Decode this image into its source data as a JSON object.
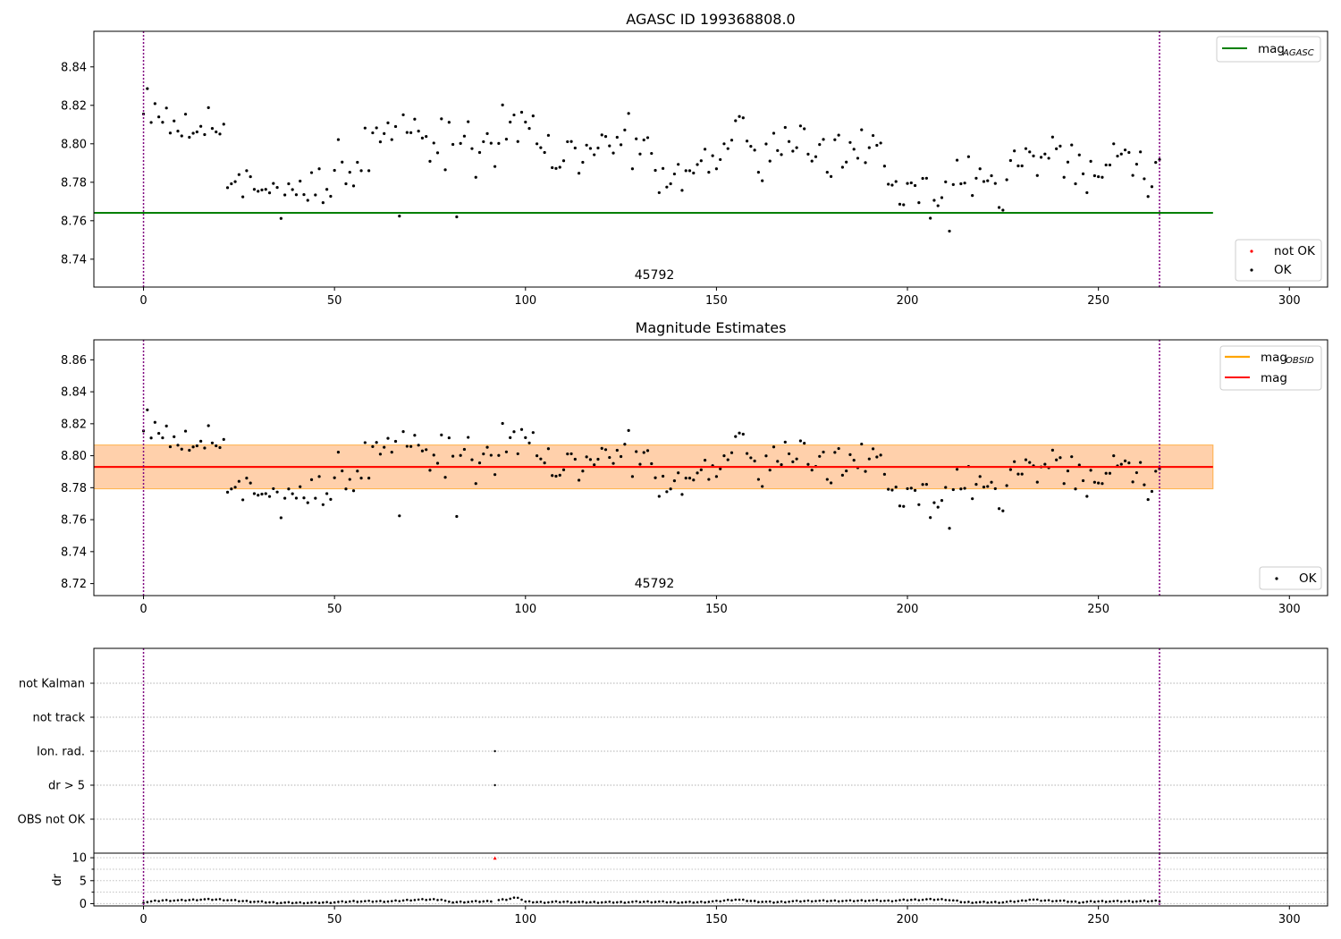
{
  "chart_data": [
    {
      "type": "scatter",
      "title": "AGASC ID 199368808.0",
      "xlim": [
        -13,
        310
      ],
      "ylim": [
        8.7255,
        8.8585
      ],
      "xticks": [
        0,
        50,
        100,
        150,
        200,
        250,
        300
      ],
      "yticks": [
        8.74,
        8.76,
        8.78,
        8.8,
        8.82,
        8.84
      ],
      "vlines": [
        0,
        266
      ],
      "annotation": {
        "text": "45792",
        "x": 133,
        "y": 8.7295
      },
      "hlines": [
        {
          "name": "mag",
          "subscript": "AGASC",
          "y": 8.7641,
          "xmin": -13,
          "xmax": 280,
          "color": "#008000"
        }
      ],
      "legend_lines": [
        {
          "name": "mag",
          "subscript": "AGASC",
          "color": "#008000"
        }
      ],
      "legend_markers": [
        {
          "name": "not OK",
          "color": "#ff0000"
        },
        {
          "name": "OK",
          "color": "#000000"
        }
      ],
      "legend_position": "top-right / bottom-right"
    },
    {
      "type": "scatter",
      "title": "Magnitude Estimates",
      "xlim": [
        -13,
        310
      ],
      "ylim": [
        8.7125,
        8.8725
      ],
      "xticks": [
        0,
        50,
        100,
        150,
        200,
        250,
        300
      ],
      "yticks": [
        8.72,
        8.74,
        8.76,
        8.78,
        8.8,
        8.82,
        8.84,
        8.86
      ],
      "vlines": [
        0,
        266
      ],
      "annotation": {
        "text": "45792",
        "x": 133,
        "y": 8.7165
      },
      "bands": [
        {
          "ymin": 8.7793,
          "ymax": 8.8067,
          "xmin": -13,
          "xmax": 280,
          "color": "#ffc0cb",
          "opacity": 0.5
        },
        {
          "ymin": 8.7793,
          "ymax": 8.8067,
          "xmin": -13,
          "xmax": 280,
          "color": "#ffa500",
          "opacity": 0.25
        }
      ],
      "hlines": [
        {
          "name": "mag",
          "subscript": "OBSID",
          "y": 8.793,
          "xmin": -13,
          "xmax": 280,
          "color": "#ffa500"
        },
        {
          "name": "mag",
          "subscript": "",
          "y": 8.793,
          "xmin": -13,
          "xmax": 280,
          "color": "#ff0000"
        }
      ],
      "legend_lines": [
        {
          "name": "mag",
          "subscript": "OBSID",
          "color": "#ffa500"
        },
        {
          "name": "mag",
          "subscript": "",
          "color": "#ff0000"
        }
      ],
      "legend_markers": [
        {
          "name": "OK",
          "color": "#000000"
        }
      ],
      "legend_position": "top-right / bottom-right"
    },
    {
      "type": "scatter",
      "title": "",
      "xlim": [
        -13,
        310
      ],
      "categories": [
        "not Kalman",
        "not track",
        "Ion. rad.",
        "dr > 5",
        "OBS not OK"
      ],
      "vlines": [
        0,
        266
      ],
      "flag_points": [
        {
          "category": "Ion. rad.",
          "x": 92
        },
        {
          "category": "dr > 5",
          "x": 92
        }
      ],
      "grid": "dotted horizontal"
    },
    {
      "type": "scatter",
      "title": "",
      "ylabel": "dr",
      "xlim": [
        -13,
        310
      ],
      "ylim": [
        -0.5,
        11
      ],
      "xticks": [
        0,
        50,
        100,
        150,
        200,
        250,
        300
      ],
      "yticks": [
        0,
        5,
        10
      ],
      "vlines": [
        0,
        266
      ],
      "outlier": {
        "x": 92,
        "y": 9.9,
        "color": "#ff0000"
      },
      "dr_profile": [
        [
          0,
          0.3
        ],
        [
          5,
          0.7
        ],
        [
          10,
          0.7
        ],
        [
          15,
          0.9
        ],
        [
          20,
          0.9
        ],
        [
          25,
          0.6
        ],
        [
          30,
          0.4
        ],
        [
          35,
          0.2
        ],
        [
          40,
          0.2
        ],
        [
          45,
          0.2
        ],
        [
          50,
          0.3
        ],
        [
          55,
          0.5
        ],
        [
          60,
          0.5
        ],
        [
          65,
          0.5
        ],
        [
          70,
          0.8
        ],
        [
          75,
          0.9
        ],
        [
          78,
          0.9
        ],
        [
          80,
          0.3
        ],
        [
          85,
          0.4
        ],
        [
          90,
          0.5
        ],
        [
          95,
          0.9
        ],
        [
          98,
          1.4
        ],
        [
          100,
          0.4
        ],
        [
          105,
          0.3
        ],
        [
          110,
          0.4
        ],
        [
          115,
          0.3
        ],
        [
          120,
          0.3
        ],
        [
          125,
          0.3
        ],
        [
          130,
          0.4
        ],
        [
          135,
          0.4
        ],
        [
          140,
          0.3
        ],
        [
          145,
          0.3
        ],
        [
          150,
          0.5
        ],
        [
          155,
          0.9
        ],
        [
          160,
          0.5
        ],
        [
          165,
          0.3
        ],
        [
          170,
          0.5
        ],
        [
          175,
          0.6
        ],
        [
          180,
          0.6
        ],
        [
          185,
          0.6
        ],
        [
          190,
          0.7
        ],
        [
          195,
          0.6
        ],
        [
          200,
          0.8
        ],
        [
          205,
          0.9
        ],
        [
          210,
          0.9
        ],
        [
          215,
          0.3
        ],
        [
          220,
          0.3
        ],
        [
          225,
          0.3
        ],
        [
          230,
          0.6
        ],
        [
          232,
          0.9
        ],
        [
          235,
          0.7
        ],
        [
          240,
          0.6
        ],
        [
          245,
          0.3
        ],
        [
          250,
          0.5
        ],
        [
          255,
          0.5
        ],
        [
          260,
          0.5
        ],
        [
          266,
          0.6
        ]
      ]
    }
  ],
  "series": {
    "mag_points": [
      8.8155,
      8.8287,
      8.8111,
      8.8209,
      8.814,
      8.8112,
      8.8186,
      8.8056,
      8.8119,
      8.8066,
      8.8041,
      8.8154,
      8.8034,
      8.8055,
      8.8062,
      8.8091,
      8.8048,
      8.8188,
      8.808,
      8.8062,
      8.8051,
      8.8102,
      8.7772,
      8.7792,
      8.7803,
      8.784,
      8.7724,
      8.786,
      8.7829,
      8.7763,
      8.7753,
      8.776,
      8.7763,
      8.7745,
      8.7794,
      8.7773,
      8.7612,
      8.7734,
      8.7792,
      8.7762,
      8.7735,
      8.7806,
      8.7736,
      8.7706,
      8.785,
      8.7734,
      8.787,
      8.7694,
      8.7763,
      8.7727,
      8.7862,
      8.8022,
      8.7905,
      8.7792,
      8.7852,
      8.7781,
      8.7904,
      8.786,
      8.8082,
      8.786,
      8.8057,
      8.8083,
      8.801,
      8.8053,
      8.8109,
      8.8022,
      8.809,
      8.7624,
      8.8151,
      8.8059,
      8.8058,
      8.8128,
      8.8066,
      8.803,
      8.8038,
      8.7909,
      8.8004,
      8.7953,
      8.813,
      8.7865,
      8.8112,
      8.7997,
      8.762,
      8.8002,
      8.804,
      8.8115,
      8.7975,
      8.7826,
      8.7955,
      8.8011,
      8.8053,
      8.8003,
      8.7882,
      8.8002,
      8.8202,
      8.8024,
      8.8113,
      8.815,
      8.8012,
      8.8164,
      8.8113,
      8.808,
      8.8145,
      8.8,
      8.798,
      8.7955,
      8.8044,
      8.7876,
      8.7872,
      8.7878,
      8.7912,
      8.8011,
      8.8012,
      8.7978,
      8.7847,
      8.7904,
      8.7993,
      8.7976,
      8.7943,
      8.7978,
      8.8046,
      8.8038,
      8.7989,
      8.7952,
      8.8034,
      8.7995,
      8.8072,
      8.8158,
      8.787,
      8.8026,
      8.7947,
      8.802,
      8.8032,
      8.795,
      8.7862,
      8.7746,
      8.7872,
      8.7775,
      8.7792,
      8.7843,
      8.7893,
      8.7758,
      8.786,
      8.786,
      8.7848,
      8.7892,
      8.7912,
      8.7972,
      8.7852,
      8.7938,
      8.787,
      8.7918,
      8.8,
      8.7975,
      8.8019,
      8.812,
      8.8142,
      8.8135,
      8.8014,
      8.7987,
      8.7967,
      8.7852,
      8.7808,
      8.7999,
      8.791,
      8.8055,
      8.7965,
      8.7944,
      8.8085,
      8.8012,
      8.7962,
      8.798,
      8.8093,
      8.8078,
      8.7946,
      8.791,
      8.7933,
      8.7996,
      8.8023,
      8.7852,
      8.783,
      8.8021,
      8.8045,
      8.7878,
      8.7905,
      8.8007,
      8.7972,
      8.7925,
      8.8073,
      8.7902,
      8.798,
      8.8043,
      8.7992,
      8.8004,
      8.7884,
      8.779,
      8.7785,
      8.7804,
      8.7686,
      8.7683,
      8.7794,
      8.7797,
      8.7783,
      8.7694,
      8.782,
      8.7821,
      8.7613,
      8.7706,
      8.7678,
      8.772,
      8.7802,
      8.7546,
      8.7788,
      8.7915,
      8.7792,
      8.7796,
      8.7933,
      8.7731,
      8.7821,
      8.787,
      8.7804,
      8.7808,
      8.7834,
      8.7794,
      8.7669,
      8.7655,
      8.7813,
      8.7913,
      8.7963,
      8.7885,
      8.7885,
      8.7975,
      8.7958,
      8.7937,
      8.7835,
      8.793,
      8.7947,
      8.7925,
      8.8035,
      8.7974,
      8.7988,
      8.7826,
      8.7905,
      8.7994,
      8.7792,
      8.7942,
      8.7844,
      8.7746,
      8.7909,
      8.7834,
      8.7829,
      8.7826,
      8.789,
      8.789,
      8.8,
      8.7936,
      8.7947,
      8.7968,
      8.7955,
      8.7836,
      8.7894,
      8.7958,
      8.7818,
      8.7726,
      8.7777,
      8.7903,
      8.7918
    ]
  },
  "panel1": {
    "title": "AGASC ID 199368808.0",
    "annotation": "45792",
    "legend_line_label": "mag",
    "legend_line_sub": "AGASC",
    "legend_notok": "not OK",
    "legend_ok": "OK"
  },
  "panel2": {
    "title": "Magnitude Estimates",
    "annotation": "45792",
    "legend_line1_label": "mag",
    "legend_line1_sub": "OBSID",
    "legend_line2_label": "mag",
    "legend_ok": "OK"
  },
  "panel3": {
    "flags": [
      "not Kalman",
      "not track",
      "Ion. rad.",
      "dr > 5",
      "OBS not OK"
    ]
  },
  "panel4": {
    "ylabel": "dr"
  },
  "colors": {
    "agasc": "#008000",
    "obsid": "#ffa500",
    "mag": "#ff0000",
    "vline": "#800080",
    "ok": "#000000",
    "notok": "#ff0000"
  }
}
